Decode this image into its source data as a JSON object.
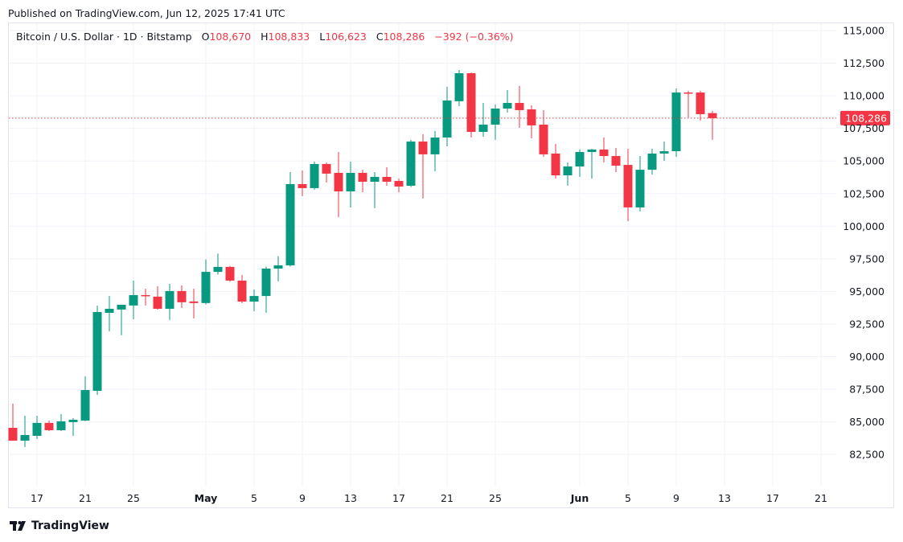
{
  "published": "Published on TradingView.com, Jun 12, 2025 17:41 UTC",
  "legend": {
    "symbol": "Bitcoin / U.S. Dollar · 1D · Bitstamp",
    "o_label": "O",
    "o": "108,670",
    "h_label": "H",
    "h": "108,833",
    "l_label": "L",
    "l": "106,623",
    "c_label": "C",
    "c": "108,286",
    "change": "−392 (−0.36%)"
  },
  "footer": {
    "brand": "TradingView",
    "logo_icon": "tradingview-logo-icon"
  },
  "colors": {
    "up": "#089981",
    "down": "#f23645",
    "grid": "#f0f3fa",
    "text": "#131722"
  },
  "chart_data": {
    "type": "candlestick",
    "title": "Bitcoin / U.S. Dollar · 1D · Bitstamp",
    "ylim": [
      80000,
      115600
    ],
    "grid": true,
    "y_ticks": [
      "82,500",
      "85,000",
      "87,500",
      "90,000",
      "92,500",
      "95,000",
      "97,500",
      "100,000",
      "102,500",
      "105,000",
      "107,500",
      "110,000",
      "112,500",
      "115,000"
    ],
    "y_tick_values": [
      82500,
      85000,
      87500,
      90000,
      92500,
      95000,
      97500,
      100000,
      102500,
      105000,
      107500,
      110000,
      112500,
      115000
    ],
    "x_ticks": [
      {
        "date": "2025-04-17",
        "label": "17",
        "bold": false
      },
      {
        "date": "2025-04-21",
        "label": "21",
        "bold": false
      },
      {
        "date": "2025-04-25",
        "label": "25",
        "bold": false
      },
      {
        "date": "2025-05-01",
        "label": "May",
        "bold": true
      },
      {
        "date": "2025-05-05",
        "label": "5",
        "bold": false
      },
      {
        "date": "2025-05-09",
        "label": "9",
        "bold": false
      },
      {
        "date": "2025-05-13",
        "label": "13",
        "bold": false
      },
      {
        "date": "2025-05-17",
        "label": "17",
        "bold": false
      },
      {
        "date": "2025-05-21",
        "label": "21",
        "bold": false
      },
      {
        "date": "2025-05-25",
        "label": "25",
        "bold": false
      },
      {
        "date": "2025-06-01",
        "label": "Jun",
        "bold": true
      },
      {
        "date": "2025-06-05",
        "label": "5",
        "bold": false
      },
      {
        "date": "2025-06-09",
        "label": "9",
        "bold": false
      },
      {
        "date": "2025-06-13",
        "label": "13",
        "bold": false
      },
      {
        "date": "2025-06-17",
        "label": "17",
        "bold": false
      },
      {
        "date": "2025-06-21",
        "label": "21",
        "bold": false
      }
    ],
    "xlim": [
      "2025-04-15",
      "2025-06-22"
    ],
    "last_price": {
      "value": 108286,
      "label": "108,286"
    },
    "candles": [
      {
        "date": "2025-04-15",
        "o": 84545,
        "h": 86400,
        "l": 83560,
        "c": 83560
      },
      {
        "date": "2025-04-16",
        "o": 83560,
        "h": 85470,
        "l": 83070,
        "c": 83990
      },
      {
        "date": "2025-04-17",
        "o": 83930,
        "h": 85470,
        "l": 83680,
        "c": 84920
      },
      {
        "date": "2025-04-18",
        "o": 84920,
        "h": 85100,
        "l": 84300,
        "c": 84360
      },
      {
        "date": "2025-04-19",
        "o": 84360,
        "h": 85590,
        "l": 84300,
        "c": 85040
      },
      {
        "date": "2025-04-20",
        "o": 84980,
        "h": 85280,
        "l": 83930,
        "c": 85160
      },
      {
        "date": "2025-04-21",
        "o": 85100,
        "h": 88490,
        "l": 85050,
        "c": 87440
      },
      {
        "date": "2025-04-22",
        "o": 87380,
        "h": 93910,
        "l": 87070,
        "c": 93420
      },
      {
        "date": "2025-04-23",
        "o": 93360,
        "h": 94660,
        "l": 91940,
        "c": 93670
      },
      {
        "date": "2025-04-24",
        "o": 93610,
        "h": 93980,
        "l": 91640,
        "c": 93980
      },
      {
        "date": "2025-04-25",
        "o": 93920,
        "h": 95830,
        "l": 92870,
        "c": 94720
      },
      {
        "date": "2025-04-26",
        "o": 94720,
        "h": 95210,
        "l": 93920,
        "c": 94650
      },
      {
        "date": "2025-04-27",
        "o": 94600,
        "h": 95400,
        "l": 93600,
        "c": 93670
      },
      {
        "date": "2025-04-28",
        "o": 93670,
        "h": 95580,
        "l": 92810,
        "c": 95030
      },
      {
        "date": "2025-04-29",
        "o": 95030,
        "h": 95460,
        "l": 93730,
        "c": 94170
      },
      {
        "date": "2025-04-30",
        "o": 94230,
        "h": 95210,
        "l": 92930,
        "c": 94110
      },
      {
        "date": "2025-05-01",
        "o": 94110,
        "h": 97450,
        "l": 94000,
        "c": 96500
      },
      {
        "date": "2025-05-02",
        "o": 96500,
        "h": 97900,
        "l": 96300,
        "c": 96880
      },
      {
        "date": "2025-05-03",
        "o": 96880,
        "h": 96950,
        "l": 95750,
        "c": 95830
      },
      {
        "date": "2025-05-04",
        "o": 95830,
        "h": 96260,
        "l": 94100,
        "c": 94220
      },
      {
        "date": "2025-05-05",
        "o": 94220,
        "h": 95150,
        "l": 93480,
        "c": 94650
      },
      {
        "date": "2025-05-06",
        "o": 94650,
        "h": 96900,
        "l": 93360,
        "c": 96750
      },
      {
        "date": "2025-05-07",
        "o": 96750,
        "h": 97700,
        "l": 95770,
        "c": 97000
      },
      {
        "date": "2025-05-08",
        "o": 97000,
        "h": 104150,
        "l": 96900,
        "c": 103230
      },
      {
        "date": "2025-05-09",
        "o": 103230,
        "h": 104270,
        "l": 102300,
        "c": 102920
      },
      {
        "date": "2025-05-10",
        "o": 102920,
        "h": 104950,
        "l": 102800,
        "c": 104770
      },
      {
        "date": "2025-05-11",
        "o": 104770,
        "h": 104890,
        "l": 103350,
        "c": 104030
      },
      {
        "date": "2025-05-12",
        "o": 104090,
        "h": 105690,
        "l": 100700,
        "c": 102670
      },
      {
        "date": "2025-05-13",
        "o": 102670,
        "h": 104950,
        "l": 101440,
        "c": 104090
      },
      {
        "date": "2025-05-14",
        "o": 104090,
        "h": 104330,
        "l": 102610,
        "c": 103410
      },
      {
        "date": "2025-05-15",
        "o": 103410,
        "h": 104150,
        "l": 101380,
        "c": 103780
      },
      {
        "date": "2025-05-16",
        "o": 103780,
        "h": 104520,
        "l": 103100,
        "c": 103410
      },
      {
        "date": "2025-05-17",
        "o": 103470,
        "h": 103650,
        "l": 102610,
        "c": 103040
      },
      {
        "date": "2025-05-18",
        "o": 103100,
        "h": 106620,
        "l": 103000,
        "c": 106490
      },
      {
        "date": "2025-05-19",
        "o": 106490,
        "h": 107050,
        "l": 102120,
        "c": 105510
      },
      {
        "date": "2025-05-20",
        "o": 105510,
        "h": 107300,
        "l": 104210,
        "c": 106800
      },
      {
        "date": "2025-05-21",
        "o": 106800,
        "h": 110690,
        "l": 106120,
        "c": 109640
      },
      {
        "date": "2025-05-22",
        "o": 109580,
        "h": 111980,
        "l": 109200,
        "c": 111730
      },
      {
        "date": "2025-05-23",
        "o": 111730,
        "h": 111790,
        "l": 106800,
        "c": 107230
      },
      {
        "date": "2025-05-24",
        "o": 107230,
        "h": 109450,
        "l": 106860,
        "c": 107790
      },
      {
        "date": "2025-05-25",
        "o": 107790,
        "h": 109330,
        "l": 106620,
        "c": 109020
      },
      {
        "date": "2025-05-26",
        "o": 109020,
        "h": 110440,
        "l": 108710,
        "c": 109450
      },
      {
        "date": "2025-05-27",
        "o": 109450,
        "h": 110750,
        "l": 107540,
        "c": 108900
      },
      {
        "date": "2025-05-28",
        "o": 108960,
        "h": 109270,
        "l": 106740,
        "c": 107730
      },
      {
        "date": "2025-05-29",
        "o": 107790,
        "h": 108900,
        "l": 105320,
        "c": 105510
      },
      {
        "date": "2025-05-30",
        "o": 105570,
        "h": 106310,
        "l": 103650,
        "c": 103900
      },
      {
        "date": "2025-05-31",
        "o": 103900,
        "h": 104890,
        "l": 103100,
        "c": 104580
      },
      {
        "date": "2025-06-01",
        "o": 104580,
        "h": 105880,
        "l": 103780,
        "c": 105690
      },
      {
        "date": "2025-06-02",
        "o": 105690,
        "h": 105940,
        "l": 103650,
        "c": 105880
      },
      {
        "date": "2025-06-03",
        "o": 105880,
        "h": 106800,
        "l": 104890,
        "c": 105380
      },
      {
        "date": "2025-06-04",
        "o": 105380,
        "h": 106000,
        "l": 104150,
        "c": 104640
      },
      {
        "date": "2025-06-05",
        "o": 104700,
        "h": 105940,
        "l": 100390,
        "c": 101440
      },
      {
        "date": "2025-06-06",
        "o": 101440,
        "h": 105380,
        "l": 101130,
        "c": 104330
      },
      {
        "date": "2025-06-07",
        "o": 104330,
        "h": 105940,
        "l": 103960,
        "c": 105570
      },
      {
        "date": "2025-06-08",
        "o": 105570,
        "h": 106490,
        "l": 105010,
        "c": 105750
      },
      {
        "date": "2025-06-09",
        "o": 105750,
        "h": 110560,
        "l": 105320,
        "c": 110250
      },
      {
        "date": "2025-06-10",
        "o": 110250,
        "h": 110380,
        "l": 108340,
        "c": 110190
      },
      {
        "date": "2025-06-11",
        "o": 110250,
        "h": 110380,
        "l": 108100,
        "c": 108590
      },
      {
        "date": "2025-06-12",
        "o": 108670,
        "h": 108833,
        "l": 106623,
        "c": 108286
      }
    ]
  }
}
